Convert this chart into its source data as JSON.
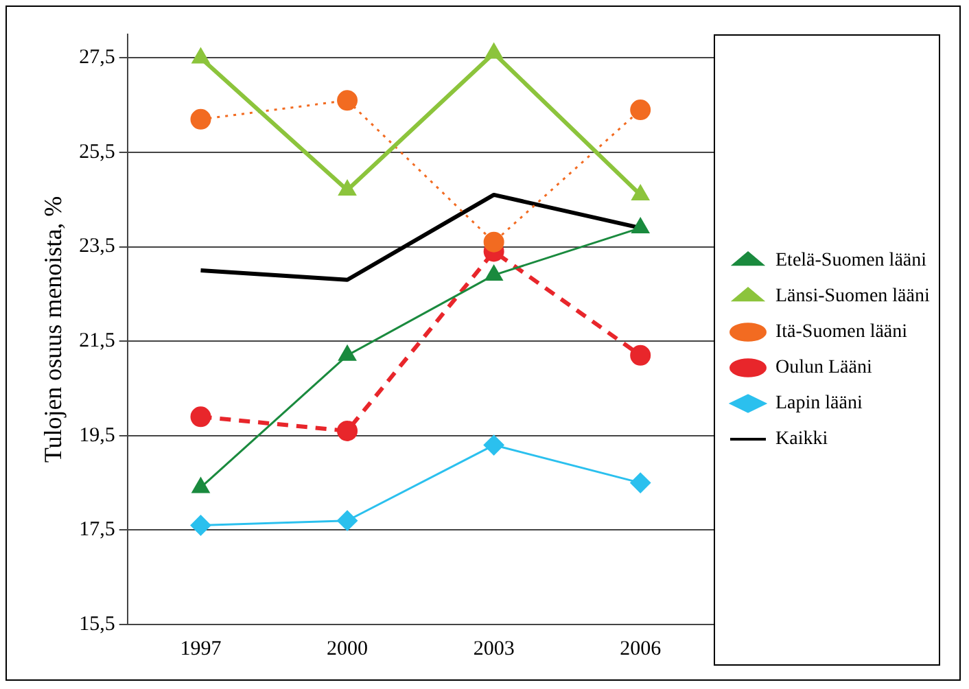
{
  "chart_data": {
    "type": "line",
    "ylabel": "Tulojen osuus menoista, %",
    "categories": [
      "1997",
      "2000",
      "2003",
      "2006"
    ],
    "series": [
      {
        "name": "Etelä-Suomen lääni",
        "color": "#1a8a3e",
        "values": [
          18.4,
          21.2,
          22.9,
          23.9
        ],
        "marker": "triangle",
        "line_style": "solid"
      },
      {
        "name": "Länsi-Suomen lääni",
        "color": "#8cc43c",
        "values": [
          27.5,
          24.7,
          27.6,
          24.6
        ],
        "marker": "triangle",
        "line_style": "solid"
      },
      {
        "name": "Itä-Suomen lääni",
        "color": "#f26b21",
        "values": [
          26.2,
          26.6,
          23.6,
          26.4
        ],
        "marker": "circle",
        "line_style": "dotted"
      },
      {
        "name": "Oulun Lääni",
        "color": "#e8262b",
        "values": [
          19.9,
          19.6,
          23.4,
          21.2
        ],
        "marker": "circle",
        "line_style": "dashed"
      },
      {
        "name": "Lapin lääni",
        "color": "#2bc0ee",
        "values": [
          17.6,
          17.7,
          19.3,
          18.5
        ],
        "marker": "diamond",
        "line_style": "solid"
      },
      {
        "name": "Kaikki",
        "color": "#000000",
        "values": [
          23.0,
          22.8,
          24.6,
          23.9
        ],
        "marker": "none",
        "line_style": "solid"
      }
    ],
    "ylim": [
      15.5,
      28
    ],
    "yticks": [
      {
        "value": 15.5,
        "label": "15,5"
      },
      {
        "value": 17.5,
        "label": "17,5"
      },
      {
        "value": 19.5,
        "label": "19,5"
      },
      {
        "value": 21.5,
        "label": "21,5"
      },
      {
        "value": 23.5,
        "label": "23,5"
      },
      {
        "value": 25.5,
        "label": "25,5"
      },
      {
        "value": 27.5,
        "label": "27,5"
      }
    ],
    "grid": "y",
    "legend": "right"
  }
}
